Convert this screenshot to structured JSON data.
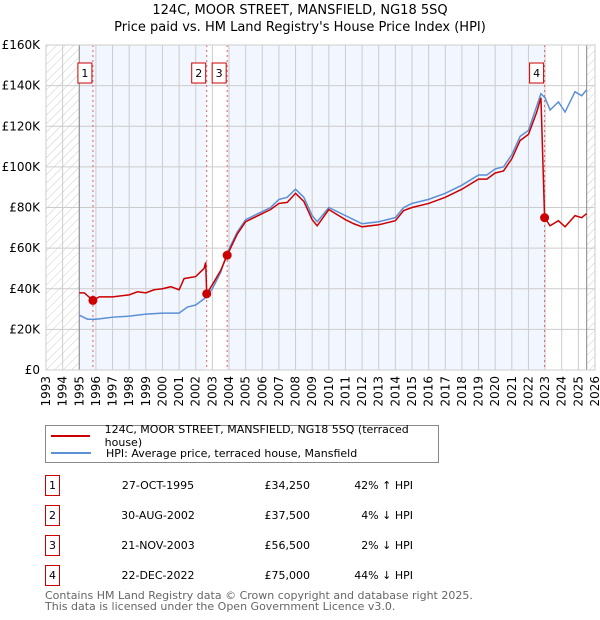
{
  "chart_data": {
    "type": "line",
    "title": "124C, MOOR STREET, MANSFIELD, NG18 5SQ",
    "subtitle": "Price paid vs. HM Land Registry's House Price Index (HPI)",
    "xlim": [
      1993,
      2026
    ],
    "ylim": [
      0,
      160000
    ],
    "yticks": [
      {
        "v": 0,
        "label": "£0"
      },
      {
        "v": 20000,
        "label": "£20K"
      },
      {
        "v": 40000,
        "label": "£40K"
      },
      {
        "v": 60000,
        "label": "£60K"
      },
      {
        "v": 80000,
        "label": "£80K"
      },
      {
        "v": 100000,
        "label": "£100K"
      },
      {
        "v": 120000,
        "label": "£120K"
      },
      {
        "v": 140000,
        "label": "£140K"
      },
      {
        "v": 160000,
        "label": "£160K"
      }
    ],
    "xticks": [
      "1993",
      "1994",
      "1995",
      "1996",
      "1997",
      "1998",
      "1999",
      "2000",
      "2001",
      "2002",
      "2003",
      "2004",
      "2005",
      "2006",
      "2007",
      "2008",
      "2009",
      "2010",
      "2011",
      "2012",
      "2013",
      "2014",
      "2015",
      "2016",
      "2017",
      "2018",
      "2019",
      "2020",
      "2021",
      "2022",
      "2023",
      "2024",
      "2025",
      "2026"
    ],
    "grid": true,
    "series": [
      {
        "name": "124C, MOOR STREET, MANSFIELD, NG18 5SQ (terraced house)",
        "color": "#cc0000",
        "points": [
          [
            1995.0,
            38000
          ],
          [
            1995.3,
            38000
          ],
          [
            1995.82,
            34250
          ],
          [
            1996.2,
            36000
          ],
          [
            1997,
            36000
          ],
          [
            1998,
            37000
          ],
          [
            1998.5,
            38500
          ],
          [
            1999,
            38000
          ],
          [
            1999.5,
            39500
          ],
          [
            2000,
            40000
          ],
          [
            2000.5,
            41000
          ],
          [
            2001,
            39500
          ],
          [
            2001.3,
            45000
          ],
          [
            2002,
            46000
          ],
          [
            2002.5,
            50000
          ],
          [
            2002.6,
            53000
          ],
          [
            2002.66,
            37500
          ],
          [
            2003,
            42000
          ],
          [
            2003.5,
            49000
          ],
          [
            2003.89,
            56500
          ],
          [
            2004.5,
            67000
          ],
          [
            2005,
            73000
          ],
          [
            2006,
            77000
          ],
          [
            2006.5,
            79000
          ],
          [
            2007,
            82000
          ],
          [
            2007.5,
            82500
          ],
          [
            2008,
            87000
          ],
          [
            2008.5,
            83000
          ],
          [
            2009,
            74000
          ],
          [
            2009.3,
            71000
          ],
          [
            2010,
            79000
          ],
          [
            2010.5,
            76500
          ],
          [
            2011,
            74000
          ],
          [
            2011.5,
            72000
          ],
          [
            2012,
            70500
          ],
          [
            2013,
            71500
          ],
          [
            2014,
            73500
          ],
          [
            2014.5,
            78500
          ],
          [
            2015,
            80000
          ],
          [
            2016,
            82000
          ],
          [
            2017,
            85000
          ],
          [
            2018,
            89000
          ],
          [
            2019,
            94000
          ],
          [
            2019.5,
            94000
          ],
          [
            2020,
            97000
          ],
          [
            2020.5,
            98000
          ],
          [
            2021,
            104000
          ],
          [
            2021.5,
            113000
          ],
          [
            2022,
            116000
          ],
          [
            2022.5,
            127000
          ],
          [
            2022.75,
            134000
          ],
          [
            2022.97,
            75000
          ],
          [
            2023.3,
            71000
          ],
          [
            2023.8,
            73500
          ],
          [
            2024.2,
            70500
          ],
          [
            2024.8,
            76000
          ],
          [
            2025.2,
            75000
          ],
          [
            2025.5,
            77000
          ]
        ]
      },
      {
        "name": "HPI: Average price, terraced house, Mansfield",
        "color": "#5b8fd6",
        "points": [
          [
            1995.0,
            27000
          ],
          [
            1995.5,
            25000
          ],
          [
            1996,
            25000
          ],
          [
            1996.5,
            25500
          ],
          [
            1997,
            26000
          ],
          [
            1998,
            26500
          ],
          [
            1999,
            27500
          ],
          [
            2000,
            28000
          ],
          [
            2001,
            28000
          ],
          [
            2001.5,
            31000
          ],
          [
            2002,
            32000
          ],
          [
            2002.66,
            36000
          ],
          [
            2003,
            40000
          ],
          [
            2003.5,
            48000
          ],
          [
            2003.89,
            57700
          ],
          [
            2004.5,
            68000
          ],
          [
            2005,
            74000
          ],
          [
            2006,
            78000
          ],
          [
            2006.5,
            80000
          ],
          [
            2007,
            84000
          ],
          [
            2007.5,
            85000
          ],
          [
            2008,
            89000
          ],
          [
            2008.5,
            85000
          ],
          [
            2009,
            76000
          ],
          [
            2009.3,
            73000
          ],
          [
            2010,
            80000
          ],
          [
            2010.5,
            78000
          ],
          [
            2011,
            76000
          ],
          [
            2011.5,
            74000
          ],
          [
            2012,
            72000
          ],
          [
            2013,
            73000
          ],
          [
            2014,
            75000
          ],
          [
            2014.5,
            80000
          ],
          [
            2015,
            82000
          ],
          [
            2016,
            84000
          ],
          [
            2017,
            87000
          ],
          [
            2018,
            91000
          ],
          [
            2019,
            96000
          ],
          [
            2019.5,
            96000
          ],
          [
            2020,
            99000
          ],
          [
            2020.5,
            100000
          ],
          [
            2021,
            106000
          ],
          [
            2021.5,
            115000
          ],
          [
            2022,
            118000
          ],
          [
            2022.5,
            130000
          ],
          [
            2022.75,
            136000
          ],
          [
            2023,
            134000
          ],
          [
            2023.3,
            128000
          ],
          [
            2023.8,
            132000
          ],
          [
            2024.2,
            127000
          ],
          [
            2024.8,
            137000
          ],
          [
            2025.2,
            135000
          ],
          [
            2025.5,
            138000
          ]
        ]
      }
    ],
    "sales": [
      {
        "n": "1",
        "x": 1995.82,
        "price": 34250,
        "date": "27-OCT-1995",
        "price_label": "£34,250",
        "hpi": "42% ↑ HPI"
      },
      {
        "n": "2",
        "x": 2002.66,
        "price": 37500,
        "date": "30-AUG-2002",
        "price_label": "£37,500",
        "hpi": "4% ↓ HPI"
      },
      {
        "n": "3",
        "x": 2003.89,
        "price": 56500,
        "date": "21-NOV-2003",
        "price_label": "£56,500",
        "hpi": "2% ↓ HPI"
      },
      {
        "n": "4",
        "x": 2022.97,
        "price": 75000,
        "date": "22-DEC-2022",
        "price_label": "£75,000",
        "hpi": "44% ↓ HPI"
      }
    ],
    "data_range": [
      1995.0,
      2025.5
    ]
  },
  "legend": {
    "property": "124C, MOOR STREET, MANSFIELD, NG18 5SQ (terraced house)",
    "hpi": "HPI: Average price, terraced house, Mansfield"
  },
  "footer": {
    "line1": "Contains HM Land Registry data © Crown copyright and database right 2025.",
    "line2": "This data is licensed under the Open Government Licence v3.0."
  }
}
